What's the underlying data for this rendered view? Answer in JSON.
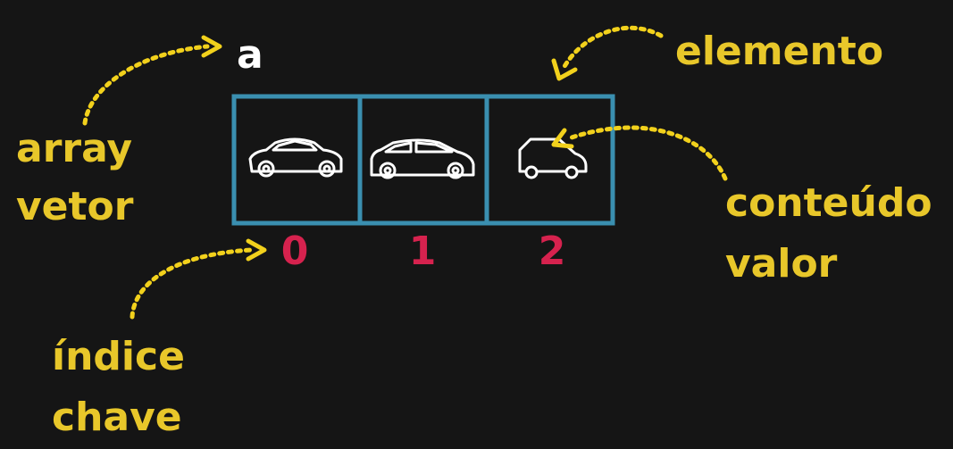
{
  "variable": {
    "name": "a"
  },
  "labels": {
    "array": "array",
    "vetor": "vetor",
    "elemento": "elemento",
    "conteudo": "conteúdo",
    "valor": "valor",
    "indice": "índice",
    "chave": "chave"
  },
  "cells": [
    {
      "index": "0",
      "icon": "sedan-car-icon"
    },
    {
      "index": "1",
      "icon": "hatchback-car-icon"
    },
    {
      "index": "2",
      "icon": "small-car-outline-icon"
    }
  ],
  "colors": {
    "background": "#151515",
    "label": "#e8c72a",
    "arrow": "#f2d11c",
    "cell_border": "#3a8fb0",
    "index": "#d6224e",
    "icon": "#ffffff"
  }
}
